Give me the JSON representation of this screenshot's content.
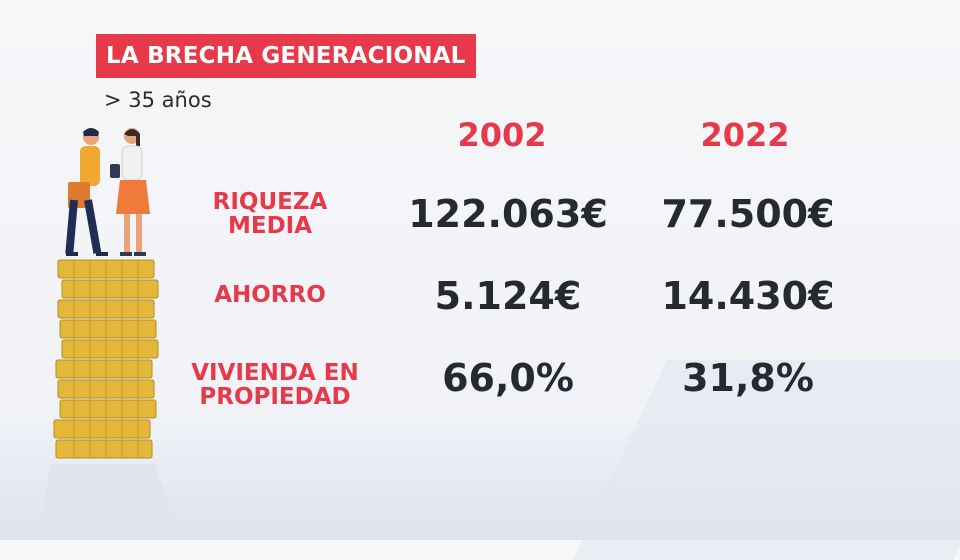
{
  "title": "LA BRECHA GENERACIONAL",
  "subtitle": "> 35 años",
  "years": [
    "2002",
    "2022"
  ],
  "rows": [
    {
      "label_line1": "RIQUEZA",
      "label_line2": "MEDIA",
      "v2002": "122.063€",
      "v2022": "77.500€"
    },
    {
      "label_line1": "AHORRO",
      "label_line2": "",
      "v2002": "5.124€",
      "v2022": "14.430€"
    },
    {
      "label_line1": "VIVIENDA EN",
      "label_line2": "PROPIEDAD",
      "v2002": "66,0%",
      "v2022": "31,8%"
    }
  ],
  "colors": {
    "accent": "#e8394a",
    "value_text": "#262a30",
    "coin": "#e3b83a"
  }
}
